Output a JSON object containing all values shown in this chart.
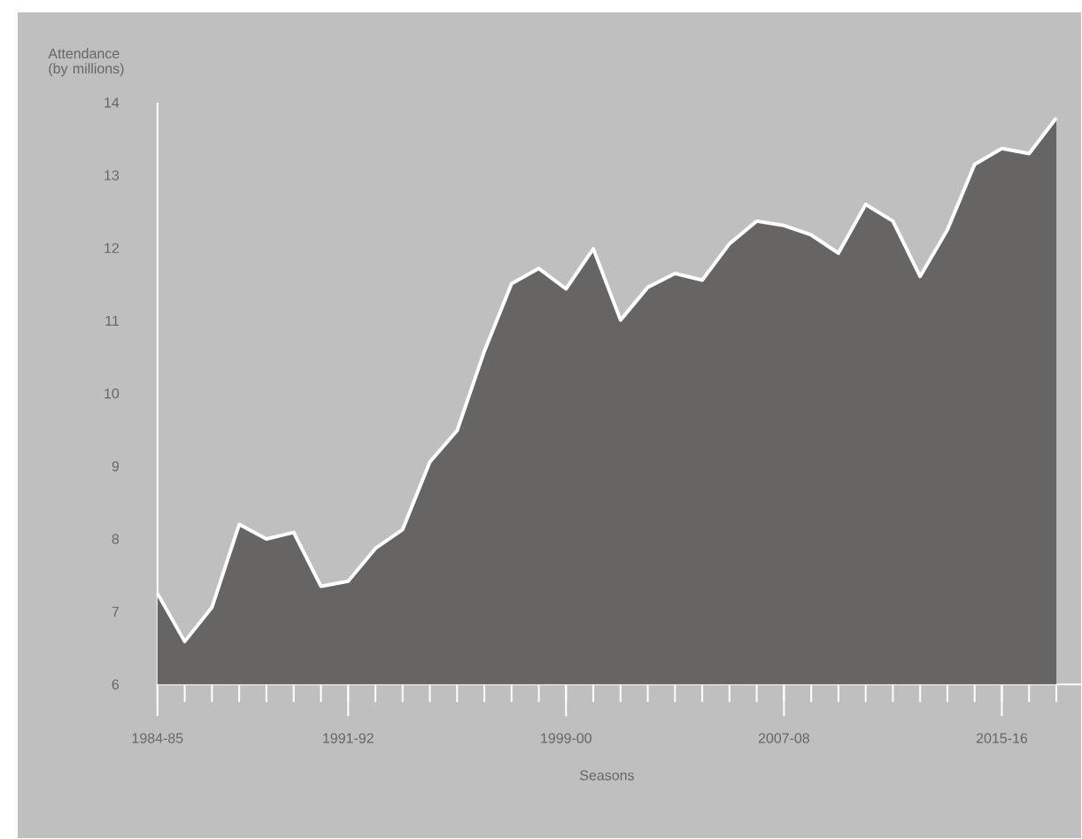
{
  "chart_data": {
    "type": "area",
    "xlabel": "Seasons",
    "ylabel": "Attendance (by millions)",
    "categories": [
      "1984-85",
      null,
      null,
      null,
      null,
      null,
      null,
      "1991-92",
      null,
      null,
      null,
      null,
      null,
      null,
      null,
      "1999-00",
      null,
      null,
      null,
      null,
      null,
      null,
      null,
      "2007-08",
      null,
      null,
      null,
      null,
      null,
      null,
      null,
      "2015-16",
      null,
      null
    ],
    "series": [
      {
        "color": "#676564",
        "values": [
          7.25,
          6.59,
          7.06,
          8.2,
          8.0,
          8.09,
          7.35,
          7.42,
          7.87,
          8.13,
          9.06,
          9.49,
          10.58,
          11.51,
          11.72,
          11.44,
          11.99,
          11.01,
          11.46,
          11.65,
          11.56,
          12.06,
          12.37,
          12.31,
          12.18,
          11.93,
          12.6,
          12.37,
          11.61,
          12.25,
          13.15,
          13.37,
          13.3,
          13.79
        ]
      }
    ],
    "ylim": [
      6,
      14
    ],
    "yticks": [
      6,
      7,
      8,
      9,
      10,
      11,
      12,
      13,
      14
    ],
    "grid": false
  }
}
